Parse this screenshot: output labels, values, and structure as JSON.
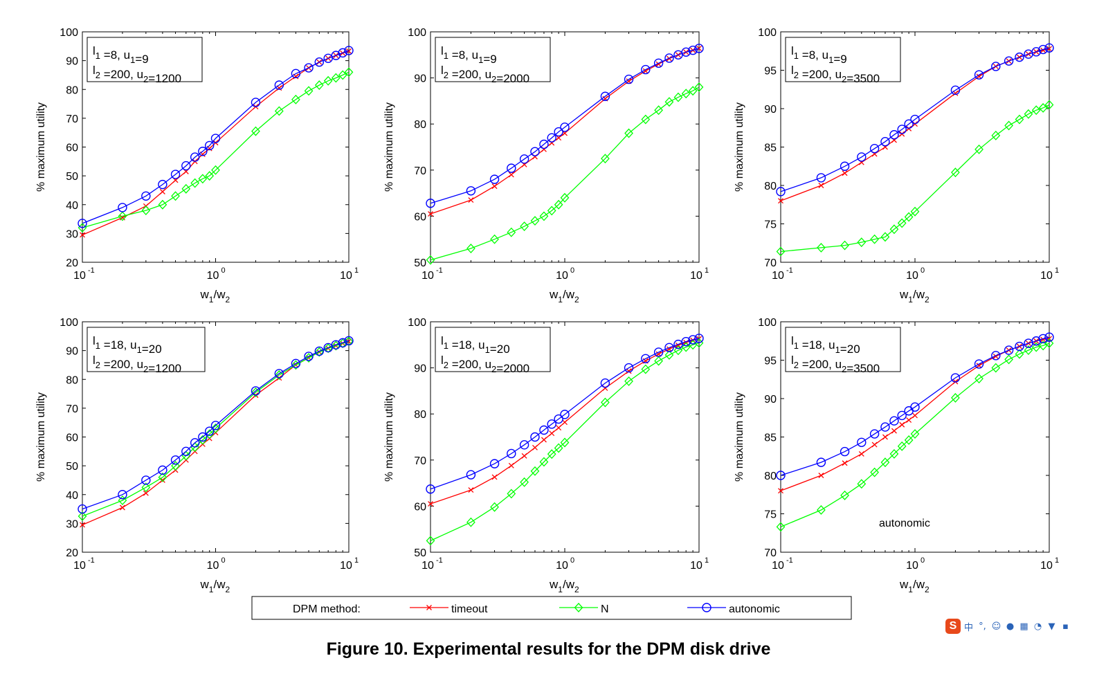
{
  "caption": "Figure 10. Experimental results for the DPM disk drive",
  "legend": {
    "title": "DPM method:",
    "entries": [
      {
        "label": "timeout",
        "color": "#ff0000",
        "marker": "x"
      },
      {
        "label": "N",
        "color": "#00ff00",
        "marker": "diamond"
      },
      {
        "label": "autonomic",
        "color": "#0000ff",
        "marker": "circle"
      }
    ]
  },
  "tray_icons": [
    "sogou-s-icon",
    "chinese-mode-icon",
    "punctuation-icon",
    "emoji-icon",
    "microphone-icon",
    "keyboard-icon",
    "skin-icon",
    "shirt-icon",
    "grid-menu-icon"
  ],
  "chart_data": [
    {
      "type": "line",
      "xscale": "log",
      "xlim": [
        0.1,
        10
      ],
      "ylim": [
        20,
        100
      ],
      "yticks": [
        20,
        30,
        40,
        50,
        60,
        70,
        80,
        90,
        100
      ],
      "ylabel": "% maximum utility",
      "xlabel": "w1/w2",
      "annotation": [
        "l1 =8, u1=9",
        "l2 =200, u2=1200"
      ],
      "x": [
        0.1,
        0.2,
        0.3,
        0.4,
        0.5,
        0.6,
        0.7,
        0.8,
        0.9,
        1,
        2,
        3,
        4,
        5,
        6,
        7,
        8,
        9,
        10
      ],
      "series": [
        {
          "name": "timeout",
          "values": [
            29.5,
            35.5,
            39.5,
            44.5,
            48.5,
            51.5,
            55,
            57.5,
            59.5,
            61.5,
            74,
            80.5,
            84.5,
            87.5,
            89.5,
            90.8,
            91.8,
            92.6,
            93.3
          ]
        },
        {
          "name": "N",
          "values": [
            32,
            36,
            38,
            40,
            43,
            45.5,
            47.5,
            49,
            50,
            52,
            65.5,
            72.5,
            76.5,
            79.5,
            81.5,
            83,
            84,
            85,
            86
          ]
        },
        {
          "name": "autonomic",
          "values": [
            33.5,
            39,
            43,
            47,
            50.5,
            53.5,
            56.5,
            58.5,
            60.5,
            63,
            75.5,
            81.5,
            85.5,
            87.5,
            89.5,
            90.8,
            91.8,
            92.7,
            93.5
          ]
        }
      ]
    },
    {
      "type": "line",
      "xscale": "log",
      "xlim": [
        0.1,
        10
      ],
      "ylim": [
        50,
        100
      ],
      "yticks": [
        50,
        60,
        70,
        80,
        90,
        100
      ],
      "ylabel": "% maximum utility",
      "xlabel": "w1/w2",
      "annotation": [
        "l1 =8, u1=9",
        "l2 =200, u2=2000"
      ],
      "x": [
        0.1,
        0.2,
        0.3,
        0.4,
        0.5,
        0.6,
        0.7,
        0.8,
        0.9,
        1,
        2,
        3,
        4,
        5,
        6,
        7,
        8,
        9,
        10
      ],
      "series": [
        {
          "name": "timeout",
          "values": [
            60.5,
            63.5,
            66.5,
            69,
            71.2,
            72.9,
            74.5,
            75.9,
            77,
            78,
            85.5,
            89.3,
            91.5,
            93,
            94.2,
            95,
            95.6,
            96,
            96.4
          ]
        },
        {
          "name": "N",
          "values": [
            50.5,
            53,
            55,
            56.5,
            57.8,
            59,
            60,
            61.2,
            62.5,
            64,
            72.5,
            78,
            81,
            83,
            84.8,
            85.8,
            86.6,
            87.2,
            88
          ]
        },
        {
          "name": "autonomic",
          "values": [
            62.8,
            65.5,
            68,
            70.4,
            72.4,
            74,
            75.6,
            77,
            78.3,
            79.3,
            86,
            89.7,
            91.8,
            93.2,
            94.3,
            95,
            95.6,
            96,
            96.4
          ]
        }
      ]
    },
    {
      "type": "line",
      "xscale": "log",
      "xlim": [
        0.1,
        10
      ],
      "ylim": [
        70,
        100
      ],
      "yticks": [
        70,
        75,
        80,
        85,
        90,
        95,
        100
      ],
      "ylabel": "% maximum utility",
      "xlabel": "w1/w2",
      "annotation": [
        "l1 =8, u1=9",
        "l2 =200, u2=3500"
      ],
      "x": [
        0.1,
        0.2,
        0.3,
        0.4,
        0.5,
        0.6,
        0.7,
        0.8,
        0.9,
        1,
        2,
        3,
        4,
        5,
        6,
        7,
        8,
        9,
        10
      ],
      "series": [
        {
          "name": "timeout",
          "values": [
            78,
            80,
            81.6,
            83,
            84.1,
            85,
            85.9,
            86.7,
            87.4,
            88,
            92,
            94.2,
            95.5,
            96.2,
            96.7,
            97.1,
            97.4,
            97.6,
            97.8
          ]
        },
        {
          "name": "N",
          "values": [
            71.4,
            71.9,
            72.2,
            72.6,
            73,
            73.3,
            74.3,
            75.1,
            75.9,
            76.6,
            81.7,
            84.7,
            86.5,
            87.8,
            88.6,
            89.3,
            89.8,
            90.1,
            90.5
          ]
        },
        {
          "name": "autonomic",
          "values": [
            79.2,
            81,
            82.5,
            83.7,
            84.8,
            85.7,
            86.6,
            87.3,
            88,
            88.6,
            92.4,
            94.4,
            95.5,
            96.2,
            96.7,
            97.1,
            97.4,
            97.7,
            97.9
          ]
        }
      ]
    },
    {
      "type": "line",
      "xscale": "log",
      "xlim": [
        0.1,
        10
      ],
      "ylim": [
        20,
        100
      ],
      "yticks": [
        20,
        30,
        40,
        50,
        60,
        70,
        80,
        90,
        100
      ],
      "ylabel": "% maximum utility",
      "xlabel": "w1/w2",
      "annotation": [
        "l1 =18, u1=20",
        "l2 =200, u2=1200"
      ],
      "x": [
        0.1,
        0.2,
        0.3,
        0.4,
        0.5,
        0.6,
        0.7,
        0.8,
        0.9,
        1,
        2,
        3,
        4,
        5,
        6,
        7,
        8,
        9,
        10
      ],
      "series": [
        {
          "name": "timeout",
          "values": [
            29.5,
            35.5,
            40.5,
            45,
            48.5,
            52,
            55,
            57.5,
            59.5,
            61.5,
            74.5,
            80.5,
            85,
            87.5,
            89.5,
            90.8,
            91.7,
            92.5,
            93.2
          ]
        },
        {
          "name": "N",
          "values": [
            32.5,
            38,
            42.5,
            46,
            50,
            53.5,
            56.5,
            59,
            61,
            63,
            75.5,
            81.5,
            85,
            87.5,
            89.5,
            90.8,
            91.7,
            92.5,
            93.2
          ]
        },
        {
          "name": "autonomic",
          "values": [
            35,
            40,
            45,
            48.5,
            52,
            55,
            58,
            60,
            62,
            64,
            76,
            82,
            85.5,
            88,
            89.8,
            91,
            92,
            92.7,
            93.4
          ]
        }
      ]
    },
    {
      "type": "line",
      "xscale": "log",
      "xlim": [
        0.1,
        10
      ],
      "ylim": [
        50,
        100
      ],
      "yticks": [
        50,
        60,
        70,
        80,
        90,
        100
      ],
      "ylabel": "% maximum utility",
      "xlabel": "w1/w2",
      "annotation": [
        "l1 =18, u1=20",
        "l2 =200, u2=2000"
      ],
      "x": [
        0.1,
        0.2,
        0.3,
        0.4,
        0.5,
        0.6,
        0.7,
        0.8,
        0.9,
        1,
        2,
        3,
        4,
        5,
        6,
        7,
        8,
        9,
        10
      ],
      "series": [
        {
          "name": "timeout",
          "values": [
            60.5,
            63.5,
            66.3,
            68.8,
            70.9,
            72.7,
            74.4,
            75.8,
            77,
            78.2,
            85.6,
            89.3,
            91.5,
            93,
            94.1,
            94.9,
            95.5,
            96,
            96.3
          ]
        },
        {
          "name": "N",
          "values": [
            52.5,
            56.5,
            59.8,
            62.7,
            65.2,
            67.6,
            69.6,
            71.3,
            72.6,
            73.8,
            82.5,
            87.1,
            89.7,
            91.5,
            92.8,
            93.8,
            94.5,
            95,
            95.4
          ]
        },
        {
          "name": "autonomic",
          "values": [
            63.7,
            66.8,
            69.2,
            71.4,
            73.3,
            75,
            76.5,
            77.8,
            78.9,
            79.9,
            86.7,
            90,
            92,
            93.4,
            94.4,
            95.1,
            95.7,
            96.1,
            96.4
          ]
        }
      ]
    },
    {
      "type": "line",
      "xscale": "log",
      "xlim": [
        0.1,
        10
      ],
      "ylim": [
        70,
        100
      ],
      "yticks": [
        70,
        75,
        80,
        85,
        90,
        95,
        100
      ],
      "ylabel": "% maximum utility",
      "xlabel": "w1/w2",
      "annotation": [
        "l1 =18, u1=20",
        "l2 =200, u2=3500"
      ],
      "text_label": "autonomic",
      "x": [
        0.1,
        0.2,
        0.3,
        0.4,
        0.5,
        0.6,
        0.7,
        0.8,
        0.9,
        1,
        2,
        3,
        4,
        5,
        6,
        7,
        8,
        9,
        10
      ],
      "series": [
        {
          "name": "timeout",
          "values": [
            78,
            80,
            81.6,
            82.8,
            84,
            85,
            85.8,
            86.6,
            87.2,
            87.8,
            92.2,
            94.3,
            95.5,
            96.3,
            96.8,
            97.2,
            97.5,
            97.7,
            97.8
          ]
        },
        {
          "name": "N",
          "values": [
            73.3,
            75.5,
            77.4,
            78.9,
            80.4,
            81.7,
            82.8,
            83.8,
            84.6,
            85.4,
            90.1,
            92.6,
            94,
            95.1,
            95.8,
            96.3,
            96.7,
            96.9,
            97.2
          ]
        },
        {
          "name": "autonomic",
          "values": [
            80,
            81.7,
            83.1,
            84.3,
            85.4,
            86.3,
            87.1,
            87.8,
            88.4,
            88.9,
            92.7,
            94.5,
            95.6,
            96.3,
            96.8,
            97.2,
            97.5,
            97.8,
            98
          ]
        }
      ]
    }
  ]
}
